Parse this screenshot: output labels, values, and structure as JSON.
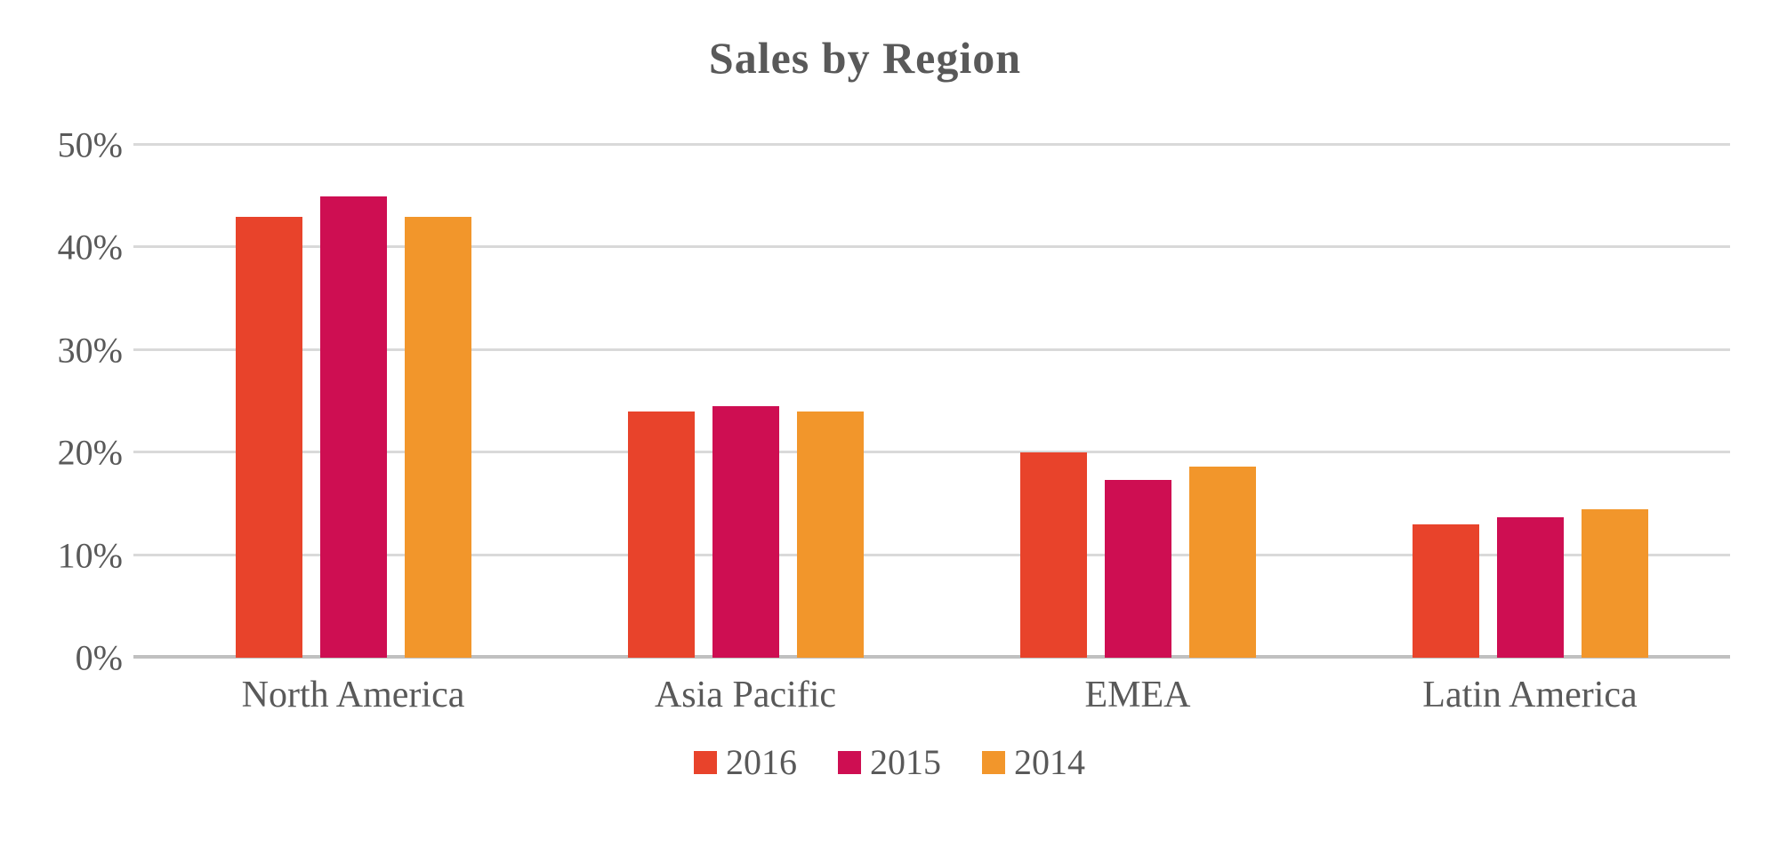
{
  "chart_data": {
    "type": "bar",
    "title": "Sales by Region",
    "categories": [
      "North America",
      "Asia Pacific",
      "EMEA",
      "Latin America"
    ],
    "series": [
      {
        "name": "2016",
        "color": "#E8432B",
        "values": [
          43,
          24,
          20,
          13
        ]
      },
      {
        "name": "2015",
        "color": "#CE0E52",
        "values": [
          45,
          24.5,
          17.3,
          13.7
        ]
      },
      {
        "name": "2014",
        "color": "#F2962B",
        "values": [
          43,
          24,
          18.6,
          14.5
        ]
      }
    ],
    "xlabel": "",
    "ylabel": "",
    "ylim": [
      0,
      50
    ],
    "y_tick_step": 10,
    "y_tick_labels": [
      "0%",
      "10%",
      "20%",
      "30%",
      "40%",
      "50%"
    ],
    "grid": true,
    "legend_position": "bottom",
    "colors": {
      "text": "#595959",
      "gridline": "#D9D9D9",
      "axis_line": "#C0C0C0",
      "background": "#FFFFFF"
    }
  }
}
